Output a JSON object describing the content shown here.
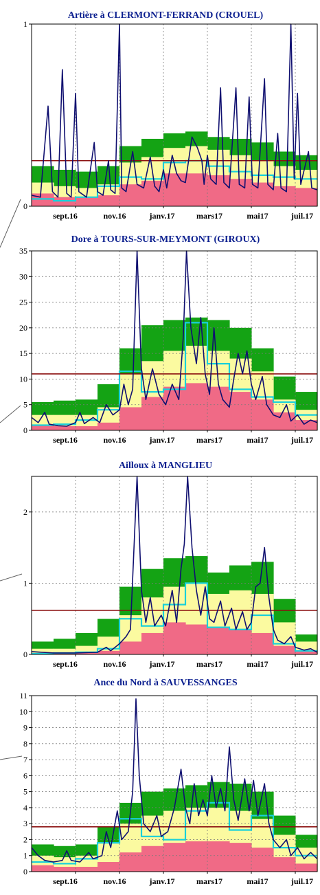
{
  "chart_data": [
    {
      "type": "line",
      "title": "Artière à CLERMONT-FERRAND (CROUEL)",
      "ylim": [
        0,
        1
      ],
      "y_ticks": [
        "1",
        "0"
      ],
      "x_tick_labels": [
        "sept.16",
        "nov.16",
        "janv.17",
        "mars17",
        "mai17",
        "juil.17"
      ],
      "reference_line": 0.25,
      "grid": true,
      "bands": {
        "months": [
          "juil.16",
          "août.16",
          "sept.16",
          "oct.16",
          "nov.16",
          "déc.16",
          "janv.17",
          "févr.17",
          "mars17",
          "avr.17",
          "mai17",
          "juin17",
          "juil.17"
        ],
        "red": [
          0.07,
          0.05,
          0.05,
          0.06,
          0.12,
          0.14,
          0.18,
          0.18,
          0.17,
          0.15,
          0.13,
          0.11,
          0.1
        ],
        "yellow": [
          0.13,
          0.11,
          0.1,
          0.12,
          0.24,
          0.27,
          0.32,
          0.33,
          0.31,
          0.28,
          0.25,
          0.22,
          0.2
        ],
        "green": [
          0.22,
          0.2,
          0.19,
          0.22,
          0.33,
          0.37,
          0.4,
          0.41,
          0.38,
          0.37,
          0.35,
          0.3,
          0.28
        ],
        "cyan": [
          0.04,
          0.03,
          0.05,
          0.11,
          0.16,
          0.15,
          0.24,
          0.25,
          0.22,
          0.19,
          0.17,
          0.16,
          0.15
        ]
      },
      "flow": [
        {
          "x": 0.0,
          "y": 0.06
        },
        {
          "x": 0.4,
          "y": 0.05
        },
        {
          "x": 0.75,
          "y": 0.55
        },
        {
          "x": 0.95,
          "y": 0.08
        },
        {
          "x": 1.2,
          "y": 0.05
        },
        {
          "x": 1.4,
          "y": 0.75
        },
        {
          "x": 1.6,
          "y": 0.07
        },
        {
          "x": 1.8,
          "y": 0.05
        },
        {
          "x": 2.0,
          "y": 0.62
        },
        {
          "x": 2.15,
          "y": 0.08
        },
        {
          "x": 2.5,
          "y": 0.05
        },
        {
          "x": 2.85,
          "y": 0.35
        },
        {
          "x": 3.0,
          "y": 0.08
        },
        {
          "x": 3.25,
          "y": 0.06
        },
        {
          "x": 3.5,
          "y": 0.25
        },
        {
          "x": 3.6,
          "y": 0.09
        },
        {
          "x": 3.8,
          "y": 0.07
        },
        {
          "x": 4.0,
          "y": 1.0
        },
        {
          "x": 4.1,
          "y": 0.1
        },
        {
          "x": 4.3,
          "y": 0.08
        },
        {
          "x": 4.6,
          "y": 0.3
        },
        {
          "x": 4.8,
          "y": 0.12
        },
        {
          "x": 5.1,
          "y": 0.1
        },
        {
          "x": 5.4,
          "y": 0.27
        },
        {
          "x": 5.6,
          "y": 0.11
        },
        {
          "x": 5.8,
          "y": 0.08
        },
        {
          "x": 6.0,
          "y": 0.2
        },
        {
          "x": 6.15,
          "y": 0.1
        },
        {
          "x": 6.4,
          "y": 0.28
        },
        {
          "x": 6.6,
          "y": 0.18
        },
        {
          "x": 6.8,
          "y": 0.14
        },
        {
          "x": 7.0,
          "y": 0.13
        },
        {
          "x": 7.3,
          "y": 0.38
        },
        {
          "x": 7.55,
          "y": 0.32
        },
        {
          "x": 7.75,
          "y": 0.25
        },
        {
          "x": 7.85,
          "y": 0.12
        },
        {
          "x": 8.0,
          "y": 0.28
        },
        {
          "x": 8.15,
          "y": 0.15
        },
        {
          "x": 8.4,
          "y": 0.12
        },
        {
          "x": 8.6,
          "y": 0.65
        },
        {
          "x": 8.75,
          "y": 0.13
        },
        {
          "x": 9.0,
          "y": 0.1
        },
        {
          "x": 9.3,
          "y": 0.65
        },
        {
          "x": 9.45,
          "y": 0.12
        },
        {
          "x": 9.7,
          "y": 0.1
        },
        {
          "x": 9.9,
          "y": 0.6
        },
        {
          "x": 10.05,
          "y": 0.12
        },
        {
          "x": 10.3,
          "y": 0.1
        },
        {
          "x": 10.6,
          "y": 0.7
        },
        {
          "x": 10.75,
          "y": 0.12
        },
        {
          "x": 11.0,
          "y": 0.09
        },
        {
          "x": 11.2,
          "y": 0.4
        },
        {
          "x": 11.35,
          "y": 0.1
        },
        {
          "x": 11.6,
          "y": 0.08
        },
        {
          "x": 11.8,
          "y": 1.0
        },
        {
          "x": 11.95,
          "y": 0.15
        },
        {
          "x": 12.1,
          "y": 0.62
        },
        {
          "x": 12.25,
          "y": 0.12
        },
        {
          "x": 12.6,
          "y": 0.3
        },
        {
          "x": 12.75,
          "y": 0.1
        },
        {
          "x": 13.0,
          "y": 0.09
        }
      ]
    },
    {
      "type": "line",
      "title": "Dore à TOURS-SUR-MEYMONT (GIROUX)",
      "ylim": [
        0,
        35
      ],
      "y_ticks": [
        "35",
        "30",
        "25",
        "20",
        "15",
        "10",
        "5",
        "0"
      ],
      "x_tick_labels": [
        "sept.16",
        "nov.16",
        "janv.17",
        "mars17",
        "mai17",
        "juil.17"
      ],
      "reference_line": 11,
      "grid": true,
      "bands": {
        "months": [
          "juil.16",
          "août.16",
          "sept.16",
          "oct.16",
          "nov.16",
          "déc.16",
          "janv.17",
          "févr.17",
          "mars17",
          "avr.17",
          "mai17",
          "juin17",
          "juil.17"
        ],
        "red": [
          1.0,
          0.8,
          0.8,
          1.5,
          4.5,
          6.5,
          8.5,
          9.2,
          8.5,
          7.5,
          6.0,
          3.5,
          2.0
        ],
        "yellow": [
          3.0,
          3.0,
          3.0,
          4.5,
          11.0,
          13.5,
          15.5,
          16.5,
          15.5,
          14.0,
          11.5,
          6.0,
          4.0
        ],
        "green": [
          5.5,
          5.8,
          6.0,
          9.0,
          16.0,
          20.5,
          21.5,
          22.0,
          21.5,
          20.0,
          16.0,
          10.5,
          7.5
        ],
        "cyan": [
          1.0,
          1.2,
          2.0,
          4.0,
          11.5,
          7.5,
          8.0,
          21.0,
          13.0,
          8.0,
          6.5,
          5.5,
          3.0
        ]
      },
      "flow": [
        {
          "x": 0.0,
          "y": 2.5
        },
        {
          "x": 0.3,
          "y": 1.5
        },
        {
          "x": 0.6,
          "y": 3.5
        },
        {
          "x": 0.8,
          "y": 1.2
        },
        {
          "x": 1.2,
          "y": 0.9
        },
        {
          "x": 1.6,
          "y": 0.8
        },
        {
          "x": 2.0,
          "y": 1.5
        },
        {
          "x": 2.2,
          "y": 3.5
        },
        {
          "x": 2.4,
          "y": 1.3
        },
        {
          "x": 2.8,
          "y": 2.5
        },
        {
          "x": 3.1,
          "y": 1.5
        },
        {
          "x": 3.4,
          "y": 5.0
        },
        {
          "x": 3.7,
          "y": 3.0
        },
        {
          "x": 4.0,
          "y": 4.0
        },
        {
          "x": 4.2,
          "y": 9.0
        },
        {
          "x": 4.4,
          "y": 5.0
        },
        {
          "x": 4.6,
          "y": 8.0
        },
        {
          "x": 4.8,
          "y": 35.0
        },
        {
          "x": 5.0,
          "y": 12.0
        },
        {
          "x": 5.2,
          "y": 6.0
        },
        {
          "x": 5.5,
          "y": 12.0
        },
        {
          "x": 5.8,
          "y": 7.0
        },
        {
          "x": 6.1,
          "y": 5.0
        },
        {
          "x": 6.4,
          "y": 9.0
        },
        {
          "x": 6.7,
          "y": 6.0
        },
        {
          "x": 6.9,
          "y": 18.0
        },
        {
          "x": 7.05,
          "y": 35.0
        },
        {
          "x": 7.25,
          "y": 20.0
        },
        {
          "x": 7.5,
          "y": 13.0
        },
        {
          "x": 7.7,
          "y": 22.0
        },
        {
          "x": 7.9,
          "y": 11.0
        },
        {
          "x": 8.1,
          "y": 7.0
        },
        {
          "x": 8.3,
          "y": 20.0
        },
        {
          "x": 8.5,
          "y": 9.0
        },
        {
          "x": 8.7,
          "y": 6.0
        },
        {
          "x": 9.0,
          "y": 4.5
        },
        {
          "x": 9.2,
          "y": 10.0
        },
        {
          "x": 9.4,
          "y": 15.0
        },
        {
          "x": 9.6,
          "y": 11.0
        },
        {
          "x": 9.8,
          "y": 15.5
        },
        {
          "x": 10.0,
          "y": 9.0
        },
        {
          "x": 10.2,
          "y": 6.0
        },
        {
          "x": 10.5,
          "y": 10.5
        },
        {
          "x": 10.7,
          "y": 5.0
        },
        {
          "x": 11.0,
          "y": 3.0
        },
        {
          "x": 11.3,
          "y": 2.5
        },
        {
          "x": 11.6,
          "y": 5.0
        },
        {
          "x": 11.8,
          "y": 1.8
        },
        {
          "x": 12.1,
          "y": 3.0
        },
        {
          "x": 12.4,
          "y": 1.2
        },
        {
          "x": 12.7,
          "y": 2.0
        },
        {
          "x": 13.0,
          "y": 1.5
        }
      ]
    },
    {
      "type": "line",
      "title": "Ailloux à MANGLIEU",
      "ylim": [
        0,
        2.5
      ],
      "y_ticks": [
        "2",
        "1",
        "0"
      ],
      "x_tick_labels": [
        "sept.16",
        "nov.16",
        "janv.17",
        "mars17",
        "mai17",
        "juil.17"
      ],
      "reference_line": 0.62,
      "grid": true,
      "bands": {
        "months": [
          "juil.16",
          "août.16",
          "sept.16",
          "oct.16",
          "nov.16",
          "déc.16",
          "janv.17",
          "févr.17",
          "mars17",
          "avr.17",
          "mai17",
          "juin17",
          "juil.17"
        ],
        "red": [
          0.02,
          0.02,
          0.02,
          0.05,
          0.18,
          0.3,
          0.45,
          0.42,
          0.38,
          0.35,
          0.3,
          0.12,
          0.05
        ],
        "yellow": [
          0.08,
          0.08,
          0.12,
          0.25,
          0.55,
          0.8,
          0.95,
          1.0,
          0.85,
          0.9,
          0.85,
          0.45,
          0.18
        ],
        "green": [
          0.18,
          0.22,
          0.3,
          0.5,
          0.95,
          1.2,
          1.35,
          1.38,
          1.15,
          1.25,
          1.3,
          0.78,
          0.28
        ],
        "cyan": [
          0.01,
          0.02,
          0.03,
          0.08,
          0.5,
          0.4,
          0.7,
          1.0,
          0.38,
          0.35,
          0.55,
          0.15,
          0.05
        ]
      },
      "flow": [
        {
          "x": 0.0,
          "y": 0.04
        },
        {
          "x": 1.0,
          "y": 0.02
        },
        {
          "x": 2.0,
          "y": 0.02
        },
        {
          "x": 3.0,
          "y": 0.03
        },
        {
          "x": 3.4,
          "y": 0.1
        },
        {
          "x": 3.6,
          "y": 0.05
        },
        {
          "x": 4.0,
          "y": 0.15
        },
        {
          "x": 4.3,
          "y": 0.25
        },
        {
          "x": 4.5,
          "y": 0.35
        },
        {
          "x": 4.8,
          "y": 2.5
        },
        {
          "x": 5.0,
          "y": 0.9
        },
        {
          "x": 5.2,
          "y": 0.45
        },
        {
          "x": 5.4,
          "y": 0.8
        },
        {
          "x": 5.6,
          "y": 0.4
        },
        {
          "x": 5.9,
          "y": 0.55
        },
        {
          "x": 6.1,
          "y": 0.4
        },
        {
          "x": 6.4,
          "y": 0.9
        },
        {
          "x": 6.6,
          "y": 0.45
        },
        {
          "x": 6.8,
          "y": 1.2
        },
        {
          "x": 6.95,
          "y": 1.55
        },
        {
          "x": 7.1,
          "y": 2.5
        },
        {
          "x": 7.3,
          "y": 1.5
        },
        {
          "x": 7.5,
          "y": 0.9
        },
        {
          "x": 7.7,
          "y": 0.55
        },
        {
          "x": 7.9,
          "y": 0.95
        },
        {
          "x": 8.1,
          "y": 0.5
        },
        {
          "x": 8.3,
          "y": 0.45
        },
        {
          "x": 8.6,
          "y": 0.75
        },
        {
          "x": 8.8,
          "y": 0.4
        },
        {
          "x": 9.1,
          "y": 0.65
        },
        {
          "x": 9.3,
          "y": 0.35
        },
        {
          "x": 9.6,
          "y": 0.6
        },
        {
          "x": 9.8,
          "y": 0.35
        },
        {
          "x": 10.0,
          "y": 0.45
        },
        {
          "x": 10.2,
          "y": 0.95
        },
        {
          "x": 10.4,
          "y": 1.0
        },
        {
          "x": 10.6,
          "y": 1.5
        },
        {
          "x": 10.8,
          "y": 0.8
        },
        {
          "x": 11.0,
          "y": 0.35
        },
        {
          "x": 11.2,
          "y": 0.2
        },
        {
          "x": 11.5,
          "y": 0.15
        },
        {
          "x": 11.8,
          "y": 0.25
        },
        {
          "x": 12.0,
          "y": 0.1
        },
        {
          "x": 12.4,
          "y": 0.06
        },
        {
          "x": 12.7,
          "y": 0.08
        },
        {
          "x": 13.0,
          "y": 0.03
        }
      ]
    },
    {
      "type": "line",
      "title": "Ance du Nord à SAUVESSANGES",
      "ylim": [
        0,
        11
      ],
      "y_ticks": [
        "11",
        "10",
        "9",
        "8",
        "7",
        "6",
        "5",
        "4",
        "3",
        "2",
        "1",
        "0"
      ],
      "x_tick_labels": [
        "sept.16",
        "nov.16",
        "janv.17",
        "mars17",
        "mai17",
        "juil.17"
      ],
      "reference_line": 2.8,
      "grid": true,
      "bands": {
        "months": [
          "juil.16",
          "août.16",
          "sept.16",
          "oct.16",
          "nov.16",
          "déc.16",
          "janv.17",
          "févr.17",
          "mars17",
          "avr.17",
          "mai17",
          "juin17",
          "juil.17"
        ],
        "red": [
          0.4,
          0.3,
          0.3,
          0.6,
          1.2,
          1.6,
          1.8,
          1.9,
          1.9,
          1.8,
          1.5,
          0.9,
          0.5
        ],
        "yellow": [
          1.0,
          0.9,
          1.0,
          1.8,
          3.0,
          3.5,
          3.8,
          4.0,
          4.0,
          3.8,
          3.3,
          2.3,
          1.5
        ],
        "green": [
          1.7,
          1.6,
          1.7,
          2.8,
          4.3,
          5.0,
          5.2,
          5.4,
          5.6,
          5.5,
          5.0,
          3.5,
          2.3
        ],
        "cyan": [
          0.6,
          0.5,
          0.8,
          1.8,
          3.3,
          2.2,
          2.0,
          3.8,
          4.3,
          2.6,
          3.5,
          1.5,
          1.0
        ]
      },
      "flow": [
        {
          "x": 0.0,
          "y": 1.5
        },
        {
          "x": 0.3,
          "y": 1.0
        },
        {
          "x": 0.6,
          "y": 0.7
        },
        {
          "x": 1.0,
          "y": 0.6
        },
        {
          "x": 1.4,
          "y": 0.7
        },
        {
          "x": 1.6,
          "y": 1.3
        },
        {
          "x": 1.8,
          "y": 0.7
        },
        {
          "x": 2.2,
          "y": 0.6
        },
        {
          "x": 2.6,
          "y": 1.2
        },
        {
          "x": 2.8,
          "y": 0.8
        },
        {
          "x": 3.2,
          "y": 1.0
        },
        {
          "x": 3.4,
          "y": 2.5
        },
        {
          "x": 3.6,
          "y": 1.5
        },
        {
          "x": 3.9,
          "y": 3.8
        },
        {
          "x": 4.1,
          "y": 2.0
        },
        {
          "x": 4.4,
          "y": 2.5
        },
        {
          "x": 4.6,
          "y": 5.0
        },
        {
          "x": 4.75,
          "y": 10.8
        },
        {
          "x": 4.9,
          "y": 6.0
        },
        {
          "x": 5.1,
          "y": 3.0
        },
        {
          "x": 5.4,
          "y": 2.5
        },
        {
          "x": 5.7,
          "y": 3.5
        },
        {
          "x": 5.9,
          "y": 2.2
        },
        {
          "x": 6.2,
          "y": 2.5
        },
        {
          "x": 6.5,
          "y": 4.0
        },
        {
          "x": 6.8,
          "y": 6.4
        },
        {
          "x": 7.0,
          "y": 4.0
        },
        {
          "x": 7.2,
          "y": 3.0
        },
        {
          "x": 7.4,
          "y": 5.5
        },
        {
          "x": 7.6,
          "y": 3.5
        },
        {
          "x": 7.8,
          "y": 4.5
        },
        {
          "x": 8.0,
          "y": 3.5
        },
        {
          "x": 8.2,
          "y": 6.0
        },
        {
          "x": 8.4,
          "y": 4.0
        },
        {
          "x": 8.6,
          "y": 5.2
        },
        {
          "x": 8.8,
          "y": 3.8
        },
        {
          "x": 9.0,
          "y": 7.8
        },
        {
          "x": 9.2,
          "y": 4.5
        },
        {
          "x": 9.4,
          "y": 3.2
        },
        {
          "x": 9.7,
          "y": 5.8
        },
        {
          "x": 9.9,
          "y": 3.8
        },
        {
          "x": 10.1,
          "y": 5.7
        },
        {
          "x": 10.3,
          "y": 3.5
        },
        {
          "x": 10.6,
          "y": 5.5
        },
        {
          "x": 10.8,
          "y": 3.0
        },
        {
          "x": 11.0,
          "y": 2.0
        },
        {
          "x": 11.3,
          "y": 1.5
        },
        {
          "x": 11.6,
          "y": 2.0
        },
        {
          "x": 11.8,
          "y": 1.0
        },
        {
          "x": 12.1,
          "y": 1.5
        },
        {
          "x": 12.4,
          "y": 0.8
        },
        {
          "x": 12.7,
          "y": 1.2
        },
        {
          "x": 13.0,
          "y": 0.8
        }
      ]
    }
  ],
  "colors": {
    "red_band": "#f06a86",
    "yellow_band": "#fbfaa0",
    "green_band": "#14a314",
    "cyan_line": "#19d0da",
    "flow_line": "#101070",
    "reference_line": "#8b1010",
    "title": "#0b1f8f",
    "axis": "#000000",
    "grid": "#7a7a7a",
    "connector": "#606060"
  }
}
